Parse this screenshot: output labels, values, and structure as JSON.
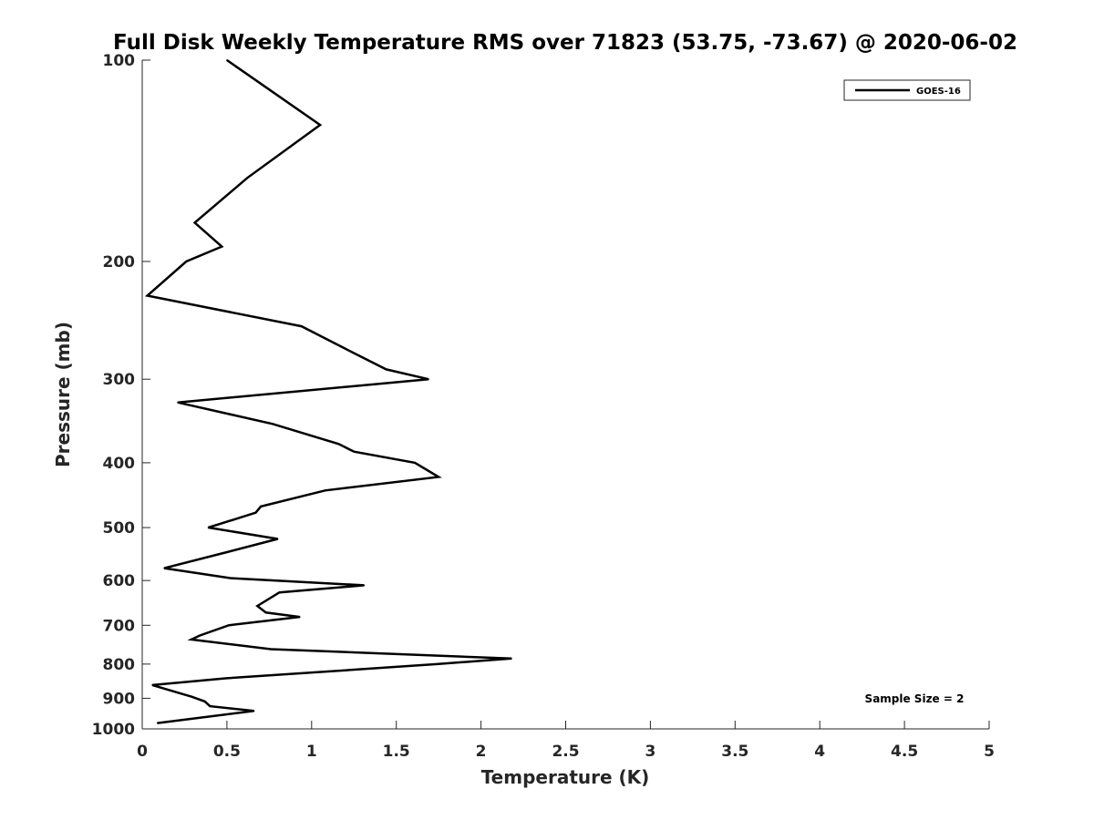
{
  "chart_data": {
    "type": "line",
    "title": "Full Disk Weekly Temperature RMS over 71823 (53.75, -73.67) @ 2020-06-02",
    "xlabel": "Temperature (K)",
    "ylabel": "Pressure (mb)",
    "xlim": [
      0,
      5
    ],
    "ylim": [
      1000,
      100
    ],
    "y_scale": "log",
    "y_reversed": true,
    "x_ticks": [
      "0",
      "0.5",
      "1",
      "1.5",
      "2",
      "2.5",
      "3",
      "3.5",
      "4",
      "4.5",
      "5"
    ],
    "y_ticks": [
      "100",
      "200",
      "300",
      "400",
      "500",
      "600",
      "700",
      "800",
      "900",
      "1000"
    ],
    "grid": false,
    "legend_position": "top-right",
    "annotation": "Sample Size = 2",
    "series": [
      {
        "name": "GOES-16",
        "color": "#000000",
        "points": [
          [
            0.5,
            100
          ],
          [
            1.05,
            125
          ],
          [
            0.62,
            150
          ],
          [
            0.31,
            175
          ],
          [
            0.47,
            190
          ],
          [
            0.26,
            200
          ],
          [
            0.03,
            225
          ],
          [
            0.94,
            250
          ],
          [
            1.26,
            275
          ],
          [
            1.44,
            290
          ],
          [
            1.69,
            300
          ],
          [
            0.21,
            325
          ],
          [
            0.77,
            350
          ],
          [
            1.16,
            375
          ],
          [
            1.25,
            385
          ],
          [
            1.61,
            400
          ],
          [
            1.75,
            420
          ],
          [
            1.08,
            440
          ],
          [
            0.7,
            465
          ],
          [
            0.67,
            475
          ],
          [
            0.39,
            500
          ],
          [
            0.8,
            520
          ],
          [
            0.49,
            545
          ],
          [
            0.13,
            575
          ],
          [
            0.52,
            595
          ],
          [
            1.31,
            610
          ],
          [
            0.81,
            625
          ],
          [
            0.68,
            655
          ],
          [
            0.73,
            670
          ],
          [
            0.93,
            680
          ],
          [
            0.51,
            700
          ],
          [
            0.34,
            725
          ],
          [
            0.29,
            735
          ],
          [
            0.76,
            760
          ],
          [
            2.18,
            785
          ],
          [
            1.74,
            800
          ],
          [
            0.5,
            840
          ],
          [
            0.06,
            860
          ],
          [
            0.29,
            895
          ],
          [
            0.37,
            910
          ],
          [
            0.4,
            925
          ],
          [
            0.66,
            940
          ],
          [
            0.09,
            980
          ]
        ]
      }
    ]
  }
}
